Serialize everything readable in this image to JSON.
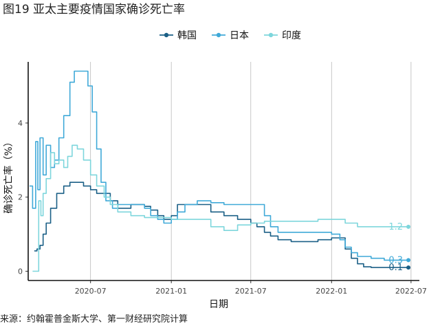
{
  "title": "图19 亚太主要疫情国家确诊死亡率",
  "source": "来源：约翰霍普金斯大学、第一财经研究院计算",
  "chart_data": {
    "type": "line",
    "xlabel": "日期",
    "ylabel": "确诊死亡率（%）",
    "x_ticks": [
      "2020-07",
      "2021-01",
      "2021-07",
      "2022-01",
      "2022-07"
    ],
    "y_ticks": [
      0,
      2,
      4
    ],
    "xlim": [
      "2020-02-10",
      "2022-07-20"
    ],
    "ylim": [
      -0.25,
      5.65
    ],
    "grid": "vertical",
    "legend_position": "top",
    "series": [
      {
        "name": "韩国",
        "color": "#1a5f86",
        "end_label": "0.1",
        "points": [
          [
            "2020-02-24",
            0.55
          ],
          [
            "2020-03-01",
            0.6
          ],
          [
            "2020-03-08",
            0.7
          ],
          [
            "2020-03-15",
            1.0
          ],
          [
            "2020-03-22",
            1.3
          ],
          [
            "2020-04-01",
            1.7
          ],
          [
            "2020-04-15",
            2.1
          ],
          [
            "2020-05-01",
            2.3
          ],
          [
            "2020-05-15",
            2.4
          ],
          [
            "2020-06-01",
            2.4
          ],
          [
            "2020-06-15",
            2.3
          ],
          [
            "2020-07-01",
            2.2
          ],
          [
            "2020-07-15",
            2.1
          ],
          [
            "2020-08-01",
            2.1
          ],
          [
            "2020-08-15",
            1.9
          ],
          [
            "2020-09-01",
            1.7
          ],
          [
            "2020-09-15",
            1.7
          ],
          [
            "2020-10-01",
            1.8
          ],
          [
            "2020-10-15",
            1.8
          ],
          [
            "2020-11-01",
            1.75
          ],
          [
            "2020-11-15",
            1.65
          ],
          [
            "2020-12-01",
            1.5
          ],
          [
            "2020-12-15",
            1.4
          ],
          [
            "2021-01-01",
            1.5
          ],
          [
            "2021-01-15",
            1.8
          ],
          [
            "2021-02-01",
            1.8
          ],
          [
            "2021-03-01",
            1.8
          ],
          [
            "2021-04-01",
            1.6
          ],
          [
            "2021-05-01",
            1.5
          ],
          [
            "2021-06-01",
            1.4
          ],
          [
            "2021-07-01",
            1.3
          ],
          [
            "2021-07-15",
            1.2
          ],
          [
            "2021-08-01",
            1.05
          ],
          [
            "2021-08-15",
            0.95
          ],
          [
            "2021-09-01",
            0.85
          ],
          [
            "2021-10-01",
            0.8
          ],
          [
            "2021-11-01",
            0.8
          ],
          [
            "2021-12-01",
            0.85
          ],
          [
            "2022-01-01",
            0.9
          ],
          [
            "2022-01-20",
            0.9
          ],
          [
            "2022-02-01",
            0.6
          ],
          [
            "2022-02-15",
            0.35
          ],
          [
            "2022-03-01",
            0.2
          ],
          [
            "2022-03-15",
            0.12
          ],
          [
            "2022-04-01",
            0.1
          ],
          [
            "2022-05-01",
            0.1
          ],
          [
            "2022-06-01",
            0.1
          ],
          [
            "2022-06-25",
            0.1
          ]
        ]
      },
      {
        "name": "日本",
        "color": "#3fa9d8",
        "end_label": "0.3",
        "points": [
          [
            "2020-02-13",
            2.3
          ],
          [
            "2020-02-20",
            1.7
          ],
          [
            "2020-02-27",
            3.5
          ],
          [
            "2020-03-03",
            2.2
          ],
          [
            "2020-03-08",
            3.6
          ],
          [
            "2020-03-15",
            2.6
          ],
          [
            "2020-03-22",
            3.4
          ],
          [
            "2020-04-01",
            2.8
          ],
          [
            "2020-04-10",
            3.0
          ],
          [
            "2020-04-20",
            3.6
          ],
          [
            "2020-05-01",
            4.2
          ],
          [
            "2020-05-15",
            5.1
          ],
          [
            "2020-05-25",
            5.4
          ],
          [
            "2020-06-15",
            5.4
          ],
          [
            "2020-06-25",
            5.0
          ],
          [
            "2020-07-05",
            4.3
          ],
          [
            "2020-07-15",
            3.3
          ],
          [
            "2020-07-25",
            2.4
          ],
          [
            "2020-08-05",
            1.9
          ],
          [
            "2020-08-20",
            1.7
          ],
          [
            "2020-09-01",
            1.8
          ],
          [
            "2020-10-01",
            1.8
          ],
          [
            "2020-11-01",
            1.7
          ],
          [
            "2020-11-15",
            1.5
          ],
          [
            "2020-12-01",
            1.4
          ],
          [
            "2020-12-15",
            1.3
          ],
          [
            "2021-01-01",
            1.4
          ],
          [
            "2021-01-15",
            1.6
          ],
          [
            "2021-02-01",
            1.8
          ],
          [
            "2021-03-01",
            1.9
          ],
          [
            "2021-04-01",
            1.85
          ],
          [
            "2021-05-01",
            1.8
          ],
          [
            "2021-06-01",
            1.8
          ],
          [
            "2021-07-01",
            1.8
          ],
          [
            "2021-07-20",
            1.8
          ],
          [
            "2021-08-01",
            1.5
          ],
          [
            "2021-08-15",
            1.2
          ],
          [
            "2021-09-01",
            1.05
          ],
          [
            "2021-10-01",
            1.05
          ],
          [
            "2021-11-01",
            1.05
          ],
          [
            "2021-12-01",
            1.05
          ],
          [
            "2022-01-01",
            1.0
          ],
          [
            "2022-01-20",
            0.85
          ],
          [
            "2022-02-01",
            0.65
          ],
          [
            "2022-02-15",
            0.5
          ],
          [
            "2022-03-01",
            0.4
          ],
          [
            "2022-04-01",
            0.35
          ],
          [
            "2022-05-01",
            0.3
          ],
          [
            "2022-06-01",
            0.3
          ],
          [
            "2022-06-25",
            0.3
          ]
        ]
      },
      {
        "name": "印度",
        "color": "#7dd6dc",
        "end_label": "1.2",
        "points": [
          [
            "2020-02-20",
            0.0
          ],
          [
            "2020-03-01",
            0.0
          ],
          [
            "2020-03-05",
            1.9
          ],
          [
            "2020-03-10",
            1.5
          ],
          [
            "2020-03-15",
            2.1
          ],
          [
            "2020-03-22",
            2.5
          ],
          [
            "2020-04-01",
            3.2
          ],
          [
            "2020-04-10",
            2.9
          ],
          [
            "2020-04-20",
            3.0
          ],
          [
            "2020-05-01",
            2.8
          ],
          [
            "2020-05-10",
            3.1
          ],
          [
            "2020-05-20",
            3.4
          ],
          [
            "2020-06-01",
            3.3
          ],
          [
            "2020-06-15",
            3.0
          ],
          [
            "2020-07-01",
            2.6
          ],
          [
            "2020-07-15",
            2.3
          ],
          [
            "2020-08-01",
            2.0
          ],
          [
            "2020-08-15",
            1.8
          ],
          [
            "2020-09-01",
            1.6
          ],
          [
            "2020-10-01",
            1.5
          ],
          [
            "2020-11-01",
            1.45
          ],
          [
            "2020-12-01",
            1.45
          ],
          [
            "2021-01-01",
            1.4
          ],
          [
            "2021-02-01",
            1.4
          ],
          [
            "2021-03-01",
            1.4
          ],
          [
            "2021-04-01",
            1.2
          ],
          [
            "2021-05-01",
            1.1
          ],
          [
            "2021-06-01",
            1.25
          ],
          [
            "2021-07-01",
            1.3
          ],
          [
            "2021-08-01",
            1.35
          ],
          [
            "2021-09-01",
            1.35
          ],
          [
            "2021-10-01",
            1.35
          ],
          [
            "2021-11-01",
            1.35
          ],
          [
            "2021-12-01",
            1.4
          ],
          [
            "2022-01-01",
            1.4
          ],
          [
            "2022-02-01",
            1.3
          ],
          [
            "2022-03-01",
            1.2
          ],
          [
            "2022-04-01",
            1.2
          ],
          [
            "2022-05-01",
            1.2
          ],
          [
            "2022-06-01",
            1.2
          ],
          [
            "2022-06-25",
            1.2
          ]
        ]
      }
    ]
  }
}
